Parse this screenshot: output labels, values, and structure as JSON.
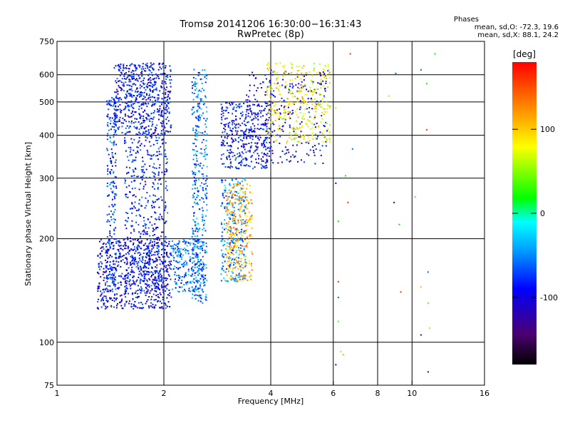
{
  "header": {
    "title_line1": "Tromsø 20141206 16:30:00−16:31:43",
    "title_line2": "RwPretec (8p)",
    "phases_label": "Phases",
    "phases_o": "mean, sd,O: -72.3, 19.6",
    "phases_x": "mean, sd,X: 88.1, 24.2"
  },
  "chart_data": {
    "type": "scatter",
    "xlabel": "Frequency [MHz]",
    "ylabel": "Stationary phase Virtual Height [km]",
    "xscale": "log",
    "yscale": "log",
    "xlim": [
      1,
      16
    ],
    "ylim": [
      75,
      750
    ],
    "xticks": [
      1,
      2,
      4,
      6,
      8,
      10,
      16
    ],
    "yticks": [
      75,
      100,
      200,
      300,
      400,
      500,
      600,
      750
    ],
    "grid": true,
    "colorbar": {
      "label": "[deg]",
      "ticks": [
        100,
        0,
        -100
      ],
      "range": [
        -180,
        180
      ],
      "colormap": "rainbow (black-purple-blue-cyan-green-yellow-red)"
    },
    "clusters": [
      {
        "name": "E/F-low blue band",
        "f_min": 1.3,
        "f_max": 2.1,
        "h_min": 125,
        "h_max": 200,
        "phase": -95,
        "n": 650
      },
      {
        "name": "vertical streak 1.4",
        "f_min": 1.38,
        "f_max": 1.47,
        "h_min": 140,
        "h_max": 520,
        "phase": -75,
        "n": 220
      },
      {
        "name": "vertical streak 1.7-2.0",
        "f_min": 1.55,
        "f_max": 2.05,
        "h_min": 140,
        "h_max": 650,
        "phase": -85,
        "n": 700
      },
      {
        "name": "F upper blob",
        "f_min": 1.45,
        "f_max": 2.1,
        "h_min": 400,
        "h_max": 650,
        "phase": -90,
        "n": 420
      },
      {
        "name": "cyan streak 2.5",
        "f_min": 2.4,
        "f_max": 2.65,
        "h_min": 130,
        "h_max": 630,
        "phase": -55,
        "n": 380
      },
      {
        "name": "low 2.2-2.6",
        "f_min": 2.1,
        "f_max": 2.6,
        "h_min": 140,
        "h_max": 200,
        "phase": -60,
        "n": 220
      },
      {
        "name": "trace 3-3.4 lower",
        "f_min": 2.9,
        "f_max": 3.4,
        "h_min": 150,
        "h_max": 300,
        "phase": -50,
        "n": 260
      },
      {
        "name": "X-mode 3.0-3.5",
        "f_min": 3.0,
        "f_max": 3.55,
        "h_min": 150,
        "h_max": 290,
        "phase": 110,
        "n": 260
      },
      {
        "name": "F trace 3-4",
        "f_min": 2.9,
        "f_max": 4.0,
        "h_min": 320,
        "h_max": 500,
        "phase": -90,
        "n": 380
      },
      {
        "name": "F2 cusp trace",
        "f_min": 3.4,
        "f_max": 5.8,
        "h_min": 330,
        "h_max": 620,
        "phase": -100,
        "n": 280
      },
      {
        "name": "F2 X-trace",
        "f_min": 3.9,
        "f_max": 5.9,
        "h_min": 380,
        "h_max": 650,
        "phase": 85,
        "n": 320
      }
    ],
    "sparse_points": [
      [
        6.1,
        480
      ],
      [
        6.1,
        290
      ],
      [
        6.2,
        225
      ],
      [
        6.2,
        150
      ],
      [
        6.2,
        135
      ],
      [
        6.2,
        115
      ],
      [
        6.3,
        94
      ],
      [
        6.1,
        86
      ],
      [
        6.5,
        305
      ],
      [
        6.6,
        255
      ],
      [
        6.8,
        365
      ],
      [
        6.4,
        92
      ],
      [
        8.6,
        520
      ],
      [
        8.9,
        255
      ],
      [
        9.2,
        220
      ],
      [
        9.3,
        140
      ],
      [
        9.0,
        605
      ],
      [
        10.2,
        265
      ],
      [
        10.6,
        145
      ],
      [
        10.6,
        105
      ],
      [
        11.0,
        565
      ],
      [
        11.0,
        415
      ],
      [
        11.1,
        160
      ],
      [
        11.1,
        130
      ],
      [
        11.2,
        110
      ],
      [
        11.1,
        82
      ],
      [
        11.6,
        690
      ],
      [
        6.7,
        690
      ],
      [
        10.6,
        620
      ]
    ]
  }
}
